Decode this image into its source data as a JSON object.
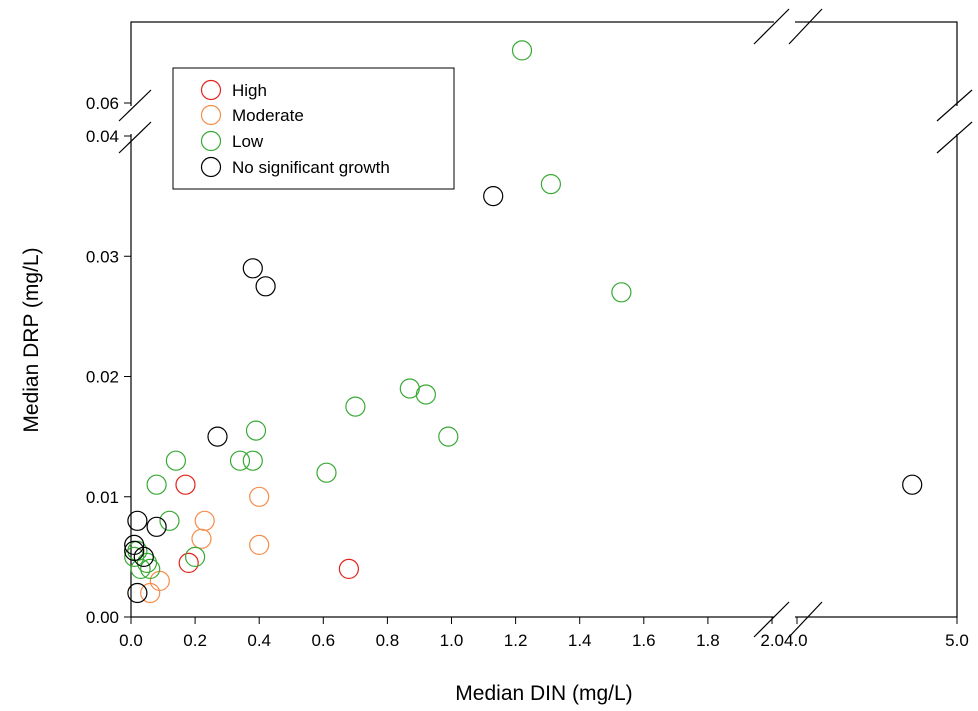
{
  "chart_data": {
    "type": "scatter",
    "xlabel": "Median DIN (mg/L)",
    "ylabel": "Median DRP (mg/L)",
    "x_axis": {
      "segments": [
        {
          "range": [
            0.0,
            2.0
          ],
          "ticks": [
            0.0,
            0.2,
            0.4,
            0.6,
            0.8,
            1.0,
            1.2,
            1.4,
            1.6,
            1.8
          ]
        },
        {
          "range": [
            4.0,
            5.0
          ],
          "ticks": [
            4.0,
            5.0
          ]
        }
      ],
      "tick_labels": [
        "0.0",
        "0.2",
        "0.4",
        "0.6",
        "0.8",
        "1.0",
        "1.2",
        "1.4",
        "1.6",
        "1.8",
        "2.04.0",
        "5.0"
      ],
      "break": "between 2.0 and 4.0"
    },
    "y_axis": {
      "segments": [
        {
          "range": [
            0.0,
            0.04
          ],
          "ticks": [
            0.0,
            0.01,
            0.02,
            0.03,
            0.04
          ]
        },
        {
          "range": [
            0.06,
            0.07
          ],
          "ticks": [
            0.06
          ]
        }
      ],
      "tick_labels": [
        "0.00",
        "0.01",
        "0.02",
        "0.03",
        "0.04",
        "0.06"
      ],
      "break": "between 0.04 and 0.06"
    },
    "grid": false,
    "legend_position": "top-left",
    "marker": "open-circle",
    "series": [
      {
        "name": "High",
        "color": "#e2231a",
        "points": [
          [
            0.17,
            0.011
          ],
          [
            0.18,
            0.0045
          ],
          [
            0.68,
            0.004
          ]
        ]
      },
      {
        "name": "Moderate",
        "color": "#f58d4b",
        "points": [
          [
            0.06,
            0.002
          ],
          [
            0.09,
            0.003
          ],
          [
            0.22,
            0.0065
          ],
          [
            0.23,
            0.008
          ],
          [
            0.4,
            0.01
          ],
          [
            0.4,
            0.006
          ]
        ]
      },
      {
        "name": "Low",
        "color": "#39a935",
        "points": [
          [
            0.01,
            0.005
          ],
          [
            0.02,
            0.0055
          ],
          [
            0.03,
            0.004
          ],
          [
            0.05,
            0.0045
          ],
          [
            0.06,
            0.004
          ],
          [
            0.08,
            0.011
          ],
          [
            0.12,
            0.008
          ],
          [
            0.14,
            0.013
          ],
          [
            0.2,
            0.005
          ],
          [
            0.34,
            0.013
          ],
          [
            0.38,
            0.013
          ],
          [
            0.39,
            0.0155
          ],
          [
            0.61,
            0.012
          ],
          [
            0.7,
            0.0175
          ],
          [
            0.87,
            0.019
          ],
          [
            0.92,
            0.0185
          ],
          [
            0.99,
            0.015
          ],
          [
            1.22,
            0.0665
          ],
          [
            1.31,
            0.036
          ],
          [
            1.53,
            0.027
          ]
        ]
      },
      {
        "name": "No significant growth",
        "color": "#000000",
        "points": [
          [
            0.01,
            0.006
          ],
          [
            0.01,
            0.0055
          ],
          [
            0.02,
            0.008
          ],
          [
            0.02,
            0.002
          ],
          [
            0.04,
            0.005
          ],
          [
            0.08,
            0.0075
          ],
          [
            0.27,
            0.015
          ],
          [
            0.38,
            0.029
          ],
          [
            0.42,
            0.0275
          ],
          [
            1.13,
            0.035
          ],
          [
            4.72,
            0.011
          ]
        ]
      }
    ]
  }
}
